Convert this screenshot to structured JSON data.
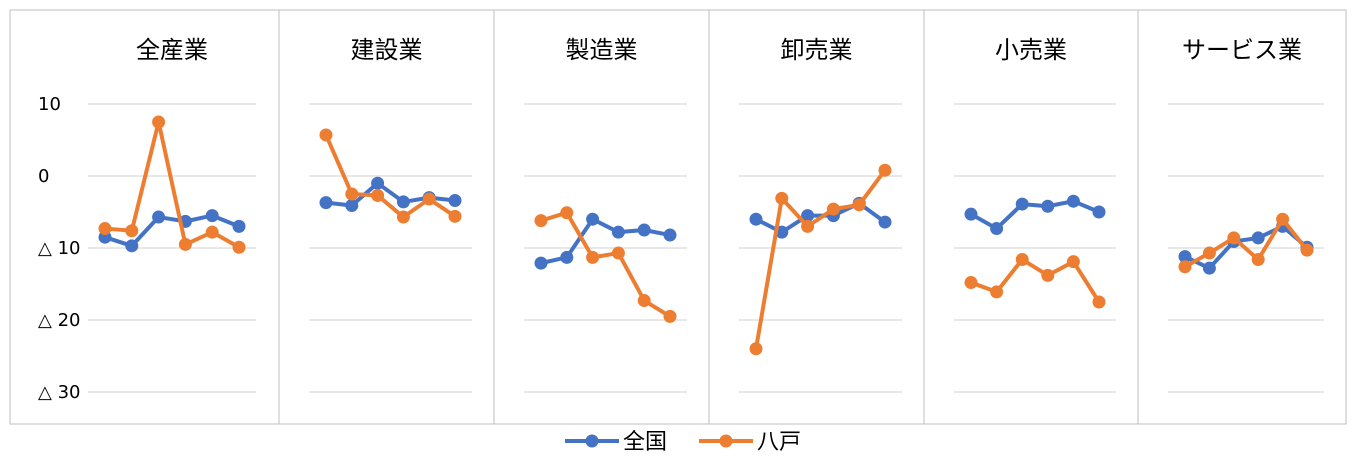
{
  "chart_data": {
    "type": "line",
    "y_axis": {
      "ticks": [
        10,
        0,
        -10,
        -20,
        -30
      ],
      "tick_labels": [
        "10",
        "0",
        "△ 10",
        "△ 20",
        "△ 30"
      ],
      "range": [
        -30,
        10
      ]
    },
    "grid": true,
    "legend_position": "bottom",
    "series_names": [
      "全国",
      "八戸"
    ],
    "colors": {
      "全国": "#4472C4",
      "八戸": "#ED7D31",
      "grid": "#d9d9d9",
      "frame": "#bfbfbf"
    },
    "panels": [
      {
        "title": "全産業",
        "series": [
          {
            "name": "全国",
            "values": [
              -8.5,
              -9.7,
              -5.7,
              -6.3,
              -5.5,
              -7.0
            ]
          },
          {
            "name": "八戸",
            "values": [
              -7.3,
              -7.6,
              7.5,
              -9.5,
              -7.8,
              -9.9
            ]
          }
        ]
      },
      {
        "title": "建設業",
        "series": [
          {
            "name": "全国",
            "values": [
              -3.7,
              -4.1,
              -1.0,
              -3.6,
              -3.0,
              -3.4
            ]
          },
          {
            "name": "八戸",
            "values": [
              5.7,
              -2.5,
              -2.7,
              -5.7,
              -3.2,
              -5.6
            ]
          }
        ]
      },
      {
        "title": "製造業",
        "series": [
          {
            "name": "全国",
            "values": [
              -12.1,
              -11.3,
              -6.0,
              -7.8,
              -7.5,
              -8.2
            ]
          },
          {
            "name": "八戸",
            "values": [
              -6.2,
              -5.1,
              -11.3,
              -10.7,
              -17.3,
              -19.5
            ]
          }
        ]
      },
      {
        "title": "卸売業",
        "series": [
          {
            "name": "全国",
            "values": [
              -6.0,
              -7.8,
              -5.5,
              -5.5,
              -3.8,
              -6.4
            ]
          },
          {
            "name": "八戸",
            "values": [
              -24.0,
              -3.1,
              -7.0,
              -4.6,
              -4.0,
              0.8
            ]
          }
        ]
      },
      {
        "title": "小売業",
        "series": [
          {
            "name": "全国",
            "values": [
              -5.3,
              -7.3,
              -3.9,
              -4.2,
              -3.5,
              -5.0
            ]
          },
          {
            "name": "八戸",
            "values": [
              -14.8,
              -16.1,
              -11.6,
              -13.8,
              -11.9,
              -17.5
            ]
          }
        ]
      },
      {
        "title": "サービス業",
        "series": [
          {
            "name": "全国",
            "values": [
              -11.2,
              -12.8,
              -9.1,
              -8.6,
              -7.0,
              -9.9
            ]
          },
          {
            "name": "八戸",
            "values": [
              -12.6,
              -10.7,
              -8.6,
              -11.6,
              -6.0,
              -10.3
            ]
          }
        ]
      }
    ]
  }
}
